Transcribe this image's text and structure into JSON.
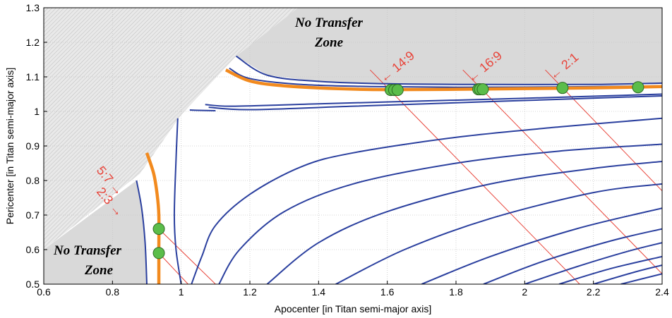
{
  "chart_data": {
    "type": "line",
    "xlabel": "Apocenter [in Titan semi-major axis]",
    "ylabel": "Pericenter [in Titan semi-major axis]",
    "xlim": [
      0.6,
      2.4
    ],
    "ylim": [
      0.5,
      1.3
    ],
    "xticks": [
      "0.6",
      "0.8",
      "1",
      "1.2",
      "1.4",
      "1.6",
      "1.8",
      "2",
      "2.2",
      "2.4"
    ],
    "yticks": [
      "0.5",
      "0.6",
      "0.7",
      "0.8",
      "0.9",
      "1",
      "1.1",
      "1.2",
      "1.3"
    ],
    "grid": true,
    "annotations": {
      "zone_upper": [
        "No Transfer",
        "Zone"
      ],
      "zone_lower": [
        "No Transfer",
        "Zone"
      ],
      "resonances": [
        {
          "label": "14:9",
          "apocenter": 1.61,
          "pericenter": 1.062
        },
        {
          "label": "16:9",
          "apocenter": 1.865,
          "pericenter": 1.064
        },
        {
          "label": "2:1",
          "apocenter": 2.11,
          "pericenter": 1.068
        },
        {
          "label": "5:7",
          "apocenter": 0.935,
          "pericenter": 0.66
        },
        {
          "label": "2:3",
          "apocenter": 0.935,
          "pericenter": 0.59
        }
      ]
    },
    "transfer_points": [
      {
        "x": 1.61,
        "y": 1.062
      },
      {
        "x": 1.62,
        "y": 1.062
      },
      {
        "x": 1.63,
        "y": 1.062
      },
      {
        "x": 1.865,
        "y": 1.064
      },
      {
        "x": 1.87,
        "y": 1.064
      },
      {
        "x": 1.878,
        "y": 1.064
      },
      {
        "x": 2.11,
        "y": 1.068
      },
      {
        "x": 2.33,
        "y": 1.07
      },
      {
        "x": 0.935,
        "y": 0.66
      },
      {
        "x": 0.935,
        "y": 0.59
      }
    ],
    "series": [
      {
        "role": "orange-upper",
        "points": [
          [
            1.13,
            1.12
          ],
          [
            1.2,
            1.088
          ],
          [
            1.3,
            1.074
          ],
          [
            1.45,
            1.066
          ],
          [
            1.6,
            1.063
          ],
          [
            1.8,
            1.064
          ],
          [
            2.0,
            1.066
          ],
          [
            2.2,
            1.068
          ],
          [
            2.4,
            1.072
          ]
        ]
      },
      {
        "role": "orange-lower",
        "points": [
          [
            0.9,
            0.88
          ],
          [
            0.92,
            0.82
          ],
          [
            0.93,
            0.76
          ],
          [
            0.935,
            0.7
          ],
          [
            0.935,
            0.6
          ],
          [
            0.935,
            0.5
          ]
        ]
      },
      {
        "role": "blue",
        "points": [
          [
            1.16,
            1.16
          ],
          [
            1.25,
            1.105
          ],
          [
            1.4,
            1.087
          ],
          [
            1.6,
            1.08
          ],
          [
            1.9,
            1.078
          ],
          [
            2.2,
            1.078
          ],
          [
            2.4,
            1.082
          ]
        ]
      },
      {
        "role": "blue",
        "points": [
          [
            1.14,
            1.125
          ],
          [
            1.2,
            1.095
          ],
          [
            1.35,
            1.078
          ],
          [
            1.55,
            1.072
          ],
          [
            1.8,
            1.07
          ],
          [
            2.1,
            1.071
          ],
          [
            2.4,
            1.074
          ]
        ]
      },
      {
        "role": "blue",
        "points": [
          [
            1.07,
            1.02
          ],
          [
            1.15,
            1.015
          ],
          [
            1.4,
            1.022
          ],
          [
            1.7,
            1.03
          ],
          [
            2.0,
            1.038
          ],
          [
            2.4,
            1.05
          ]
        ]
      },
      {
        "role": "blue",
        "points": [
          [
            1.025,
            1.004
          ],
          [
            1.05,
            1.003
          ],
          [
            1.1,
            1.002
          ]
        ]
      },
      {
        "role": "blue",
        "points": [
          [
            1.08,
            1.012
          ],
          [
            1.2,
            1.005
          ],
          [
            1.5,
            1.015
          ],
          [
            1.8,
            1.025
          ],
          [
            2.1,
            1.035
          ],
          [
            2.4,
            1.045
          ]
        ]
      },
      {
        "role": "blue",
        "points": [
          [
            0.87,
            0.8
          ],
          [
            0.885,
            0.72
          ],
          [
            0.895,
            0.62
          ],
          [
            0.9,
            0.5
          ]
        ]
      },
      {
        "role": "blue",
        "points": [
          [
            0.99,
            0.98
          ],
          [
            0.985,
            0.86
          ],
          [
            0.98,
            0.7
          ],
          [
            0.985,
            0.6
          ],
          [
            1.0,
            0.5
          ]
        ]
      },
      {
        "role": "blue",
        "points": [
          [
            1.03,
            0.5
          ],
          [
            1.06,
            0.58
          ],
          [
            1.1,
            0.67
          ],
          [
            1.2,
            0.76
          ],
          [
            1.35,
            0.84
          ],
          [
            1.5,
            0.88
          ],
          [
            1.8,
            0.925
          ],
          [
            2.1,
            0.955
          ],
          [
            2.4,
            0.98
          ]
        ]
      },
      {
        "role": "blue",
        "points": [
          [
            1.11,
            0.5
          ],
          [
            1.17,
            0.6
          ],
          [
            1.3,
            0.71
          ],
          [
            1.5,
            0.79
          ],
          [
            1.8,
            0.85
          ],
          [
            2.1,
            0.885
          ],
          [
            2.4,
            0.905
          ]
        ]
      },
      {
        "role": "blue",
        "points": [
          [
            1.25,
            0.5
          ],
          [
            1.4,
            0.62
          ],
          [
            1.6,
            0.71
          ],
          [
            1.9,
            0.79
          ],
          [
            2.2,
            0.835
          ],
          [
            2.4,
            0.855
          ]
        ]
      },
      {
        "role": "blue",
        "points": [
          [
            1.45,
            0.5
          ],
          [
            1.65,
            0.6
          ],
          [
            1.9,
            0.69
          ],
          [
            2.2,
            0.765
          ],
          [
            2.4,
            0.79
          ]
        ]
      },
      {
        "role": "blue",
        "points": [
          [
            1.7,
            0.5
          ],
          [
            1.9,
            0.58
          ],
          [
            2.15,
            0.66
          ],
          [
            2.4,
            0.72
          ]
        ]
      },
      {
        "role": "blue",
        "points": [
          [
            1.88,
            0.5
          ],
          [
            2.05,
            0.565
          ],
          [
            2.25,
            0.625
          ],
          [
            2.4,
            0.66
          ]
        ]
      },
      {
        "role": "blue",
        "points": [
          [
            2.0,
            0.5
          ],
          [
            2.15,
            0.55
          ],
          [
            2.3,
            0.595
          ],
          [
            2.4,
            0.62
          ]
        ]
      },
      {
        "role": "blue",
        "points": [
          [
            2.1,
            0.5
          ],
          [
            2.25,
            0.545
          ],
          [
            2.4,
            0.58
          ]
        ]
      },
      {
        "role": "blue",
        "points": [
          [
            2.2,
            0.5
          ],
          [
            2.32,
            0.535
          ],
          [
            2.4,
            0.555
          ]
        ]
      },
      {
        "role": "blue",
        "points": [
          [
            2.28,
            0.5
          ],
          [
            2.4,
            0.53
          ]
        ]
      }
    ],
    "resonance_lines": [
      {
        "x1": 0.935,
        "y1": 0.66,
        "x2": 1.1,
        "y2": 0.5
      },
      {
        "x1": 0.935,
        "y1": 0.59,
        "x2": 1.02,
        "y2": 0.5
      },
      {
        "x1": 1.55,
        "y1": 1.12,
        "x2": 2.16,
        "y2": 0.5
      },
      {
        "x1": 1.82,
        "y1": 1.12,
        "x2": 2.4,
        "y2": 0.53
      },
      {
        "x1": 2.06,
        "y1": 1.12,
        "x2": 2.4,
        "y2": 0.77
      }
    ],
    "colors": {
      "blue": "#2a3f9e",
      "orange": "#f28a1e",
      "green": "#5bbd4a",
      "red": "#e8443a",
      "shade": "#d9d9d9"
    }
  }
}
